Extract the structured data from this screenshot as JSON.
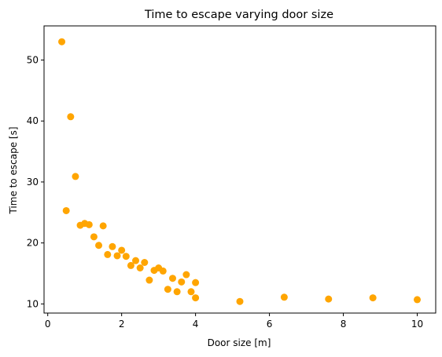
{
  "chart_data": {
    "type": "scatter",
    "title": "Time to escape varying door size",
    "xlabel": "Door size [m]",
    "ylabel": "Time to escape [s]",
    "xlim": [
      -0.1,
      10.5
    ],
    "ylim": [
      8.5,
      55.6
    ],
    "xticks": [
      0,
      2,
      4,
      6,
      8,
      10
    ],
    "yticks": [
      10,
      20,
      30,
      40,
      50
    ],
    "grid": false,
    "marker_color": "#FFA500",
    "points": [
      {
        "x": 0.38,
        "y": 53.0
      },
      {
        "x": 0.5,
        "y": 25.3
      },
      {
        "x": 0.62,
        "y": 40.7
      },
      {
        "x": 0.75,
        "y": 30.9
      },
      {
        "x": 0.88,
        "y": 22.9
      },
      {
        "x": 1.0,
        "y": 23.2
      },
      {
        "x": 1.12,
        "y": 23.0
      },
      {
        "x": 1.25,
        "y": 21.0
      },
      {
        "x": 1.38,
        "y": 19.6
      },
      {
        "x": 1.5,
        "y": 22.8
      },
      {
        "x": 1.62,
        "y": 18.1
      },
      {
        "x": 1.75,
        "y": 19.4
      },
      {
        "x": 1.88,
        "y": 17.9
      },
      {
        "x": 2.0,
        "y": 18.8
      },
      {
        "x": 2.12,
        "y": 17.8
      },
      {
        "x": 2.25,
        "y": 16.3
      },
      {
        "x": 2.38,
        "y": 17.1
      },
      {
        "x": 2.5,
        "y": 15.9
      },
      {
        "x": 2.62,
        "y": 16.8
      },
      {
        "x": 2.75,
        "y": 13.9
      },
      {
        "x": 2.88,
        "y": 15.5
      },
      {
        "x": 3.0,
        "y": 15.9
      },
      {
        "x": 3.12,
        "y": 15.4
      },
      {
        "x": 3.25,
        "y": 12.4
      },
      {
        "x": 3.38,
        "y": 14.2
      },
      {
        "x": 3.5,
        "y": 12.0
      },
      {
        "x": 3.62,
        "y": 13.6
      },
      {
        "x": 3.75,
        "y": 14.8
      },
      {
        "x": 3.88,
        "y": 12.0
      },
      {
        "x": 4.0,
        "y": 13.5
      },
      {
        "x": 4.0,
        "y": 11.0
      },
      {
        "x": 5.2,
        "y": 10.4
      },
      {
        "x": 6.4,
        "y": 11.1
      },
      {
        "x": 7.6,
        "y": 10.8
      },
      {
        "x": 8.8,
        "y": 11.0
      },
      {
        "x": 10.0,
        "y": 10.7
      }
    ]
  }
}
